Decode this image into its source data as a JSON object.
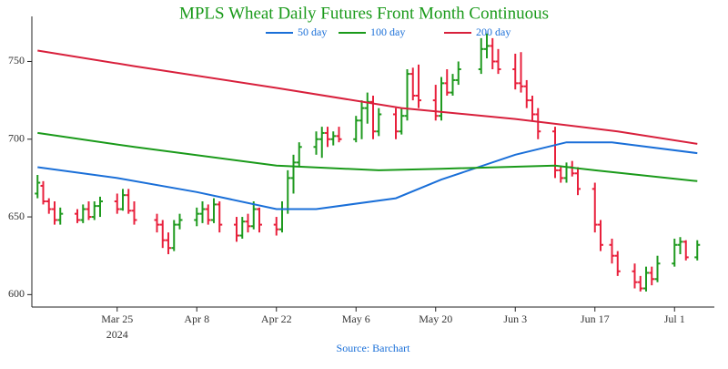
{
  "chart_data": {
    "type": "ohlc",
    "title": "MPLS Wheat Daily Futures Front Month Continuous",
    "source": "Source: Barchart",
    "x_year_label": "2024",
    "increasing_color": "#1f9a1f",
    "decreasing_color": "#e8203c",
    "xlim": [
      "2024-03-10",
      "2024-07-08"
    ],
    "xticks": [
      {
        "value": "2024-03-25",
        "label": "Mar 25"
      },
      {
        "value": "2024-04-08",
        "label": "Apr 8"
      },
      {
        "value": "2024-04-22",
        "label": "Apr 22"
      },
      {
        "value": "2024-05-06",
        "label": "May 6"
      },
      {
        "value": "2024-05-20",
        "label": "May 20"
      },
      {
        "value": "2024-06-03",
        "label": "Jun 3"
      },
      {
        "value": "2024-06-17",
        "label": "Jun 17"
      },
      {
        "value": "2024-07-01",
        "label": "Jul 1"
      }
    ],
    "ylim": [
      592,
      779
    ],
    "yticks": [
      600,
      650,
      700,
      750
    ],
    "legend": "top",
    "x": [
      "2024-03-11",
      "2024-03-12",
      "2024-03-13",
      "2024-03-14",
      "2024-03-15",
      "2024-03-18",
      "2024-03-19",
      "2024-03-20",
      "2024-03-21",
      "2024-03-22",
      "2024-03-25",
      "2024-03-26",
      "2024-03-27",
      "2024-03-28",
      "2024-04-01",
      "2024-04-02",
      "2024-04-03",
      "2024-04-04",
      "2024-04-05",
      "2024-04-08",
      "2024-04-09",
      "2024-04-10",
      "2024-04-11",
      "2024-04-12",
      "2024-04-15",
      "2024-04-16",
      "2024-04-17",
      "2024-04-18",
      "2024-04-19",
      "2024-04-22",
      "2024-04-23",
      "2024-04-24",
      "2024-04-25",
      "2024-04-26",
      "2024-04-29",
      "2024-04-30",
      "2024-05-01",
      "2024-05-02",
      "2024-05-03",
      "2024-05-06",
      "2024-05-07",
      "2024-05-08",
      "2024-05-09",
      "2024-05-10",
      "2024-05-13",
      "2024-05-14",
      "2024-05-15",
      "2024-05-16",
      "2024-05-17",
      "2024-05-20",
      "2024-05-21",
      "2024-05-22",
      "2024-05-23",
      "2024-05-24",
      "2024-05-28",
      "2024-05-29",
      "2024-05-30",
      "2024-05-31",
      "2024-06-03",
      "2024-06-04",
      "2024-06-05",
      "2024-06-06",
      "2024-06-07",
      "2024-06-10",
      "2024-06-11",
      "2024-06-12",
      "2024-06-13",
      "2024-06-14",
      "2024-06-17",
      "2024-06-18",
      "2024-06-20",
      "2024-06-21",
      "2024-06-24",
      "2024-06-25",
      "2024-06-26",
      "2024-06-27",
      "2024-06-28",
      "2024-07-01",
      "2024-07-02",
      "2024-07-03",
      "2024-07-05"
    ],
    "open": [
      665,
      670,
      660,
      655,
      648,
      652,
      648,
      655,
      650,
      657,
      660,
      655,
      664,
      654,
      648,
      645,
      635,
      630,
      645,
      648,
      652,
      655,
      648,
      658,
      645,
      638,
      647,
      644,
      655,
      645,
      642,
      655,
      675,
      685,
      695,
      700,
      704,
      700,
      702,
      700,
      712,
      720,
      724,
      705,
      716,
      705,
      715,
      742,
      728,
      725,
      715,
      736,
      730,
      738,
      745,
      758,
      760,
      750,
      745,
      736,
      734,
      725,
      716,
      705,
      680,
      675,
      682,
      678,
      668,
      645,
      632,
      625,
      615,
      608,
      604,
      614,
      610,
      620,
      632,
      634,
      624
    ],
    "high": [
      677,
      673,
      662,
      660,
      656,
      655,
      658,
      660,
      660,
      663,
      665,
      668,
      668,
      660,
      652,
      648,
      640,
      648,
      652,
      656,
      660,
      658,
      662,
      660,
      650,
      650,
      652,
      660,
      656,
      650,
      660,
      680,
      690,
      698,
      705,
      708,
      708,
      705,
      708,
      715,
      725,
      730,
      728,
      720,
      720,
      720,
      745,
      746,
      748,
      735,
      740,
      745,
      742,
      750,
      765,
      768,
      765,
      758,
      755,
      756,
      738,
      728,
      720,
      708,
      682,
      685,
      686,
      682,
      672,
      648,
      636,
      628,
      620,
      612,
      618,
      618,
      625,
      636,
      637,
      635,
      635
    ],
    "low": [
      662,
      658,
      652,
      645,
      645,
      646,
      646,
      648,
      648,
      650,
      652,
      654,
      652,
      645,
      640,
      630,
      626,
      628,
      642,
      644,
      646,
      645,
      646,
      640,
      634,
      636,
      640,
      642,
      640,
      638,
      640,
      652,
      665,
      682,
      690,
      688,
      695,
      696,
      698,
      698,
      700,
      710,
      700,
      702,
      700,
      703,
      712,
      725,
      720,
      712,
      712,
      728,
      728,
      735,
      742,
      752,
      745,
      742,
      732,
      730,
      720,
      712,
      700,
      675,
      672,
      672,
      676,
      664,
      640,
      628,
      620,
      612,
      604,
      602,
      602,
      606,
      608,
      618,
      626,
      622,
      622
    ],
    "close": [
      672,
      660,
      655,
      648,
      652,
      648,
      655,
      650,
      657,
      660,
      655,
      664,
      654,
      648,
      645,
      635,
      630,
      645,
      648,
      652,
      655,
      648,
      658,
      645,
      638,
      647,
      644,
      655,
      645,
      642,
      655,
      675,
      685,
      695,
      700,
      704,
      700,
      702,
      700,
      712,
      720,
      724,
      705,
      716,
      705,
      715,
      742,
      728,
      725,
      715,
      736,
      730,
      738,
      745,
      758,
      760,
      750,
      745,
      736,
      734,
      725,
      716,
      705,
      680,
      675,
      682,
      678,
      668,
      645,
      632,
      625,
      615,
      608,
      604,
      614,
      610,
      620,
      632,
      634,
      624,
      632
    ],
    "series": [
      {
        "name": "50 day",
        "color": "#1a6fd8",
        "x": [
          "2024-03-11",
          "2024-03-25",
          "2024-04-08",
          "2024-04-22",
          "2024-04-29",
          "2024-05-13",
          "2024-05-21",
          "2024-06-03",
          "2024-06-12",
          "2024-06-20",
          "2024-07-05"
        ],
        "values": [
          682,
          675,
          666,
          655,
          655,
          662,
          674,
          690,
          698,
          698,
          691
        ]
      },
      {
        "name": "100 day",
        "color": "#1a9a1a",
        "x": [
          "2024-03-11",
          "2024-03-28",
          "2024-04-22",
          "2024-05-10",
          "2024-05-21",
          "2024-06-10",
          "2024-06-17",
          "2024-07-05"
        ],
        "values": [
          704,
          695,
          683,
          680,
          681,
          683,
          680,
          673
        ]
      },
      {
        "name": "200 day",
        "color": "#d8203c",
        "x": [
          "2024-03-11",
          "2024-03-28",
          "2024-04-22",
          "2024-05-14",
          "2024-06-03",
          "2024-06-21",
          "2024-07-05"
        ],
        "values": [
          757,
          747,
          733,
          720,
          713,
          705,
          697
        ]
      }
    ]
  }
}
